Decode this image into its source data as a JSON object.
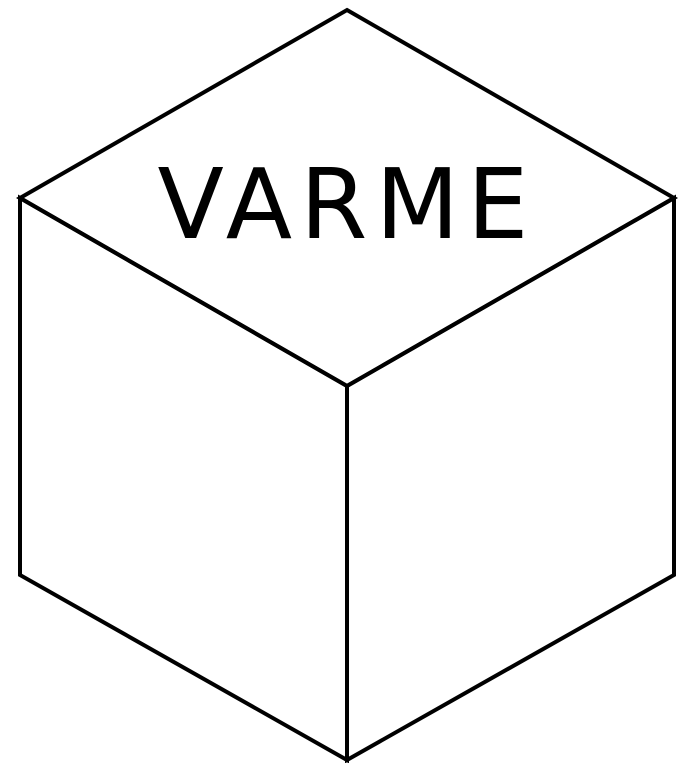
{
  "diagram": {
    "top_face_label": "VARME",
    "colors": {
      "line": "#000000",
      "background": "#ffffff",
      "text": "#000000"
    }
  }
}
